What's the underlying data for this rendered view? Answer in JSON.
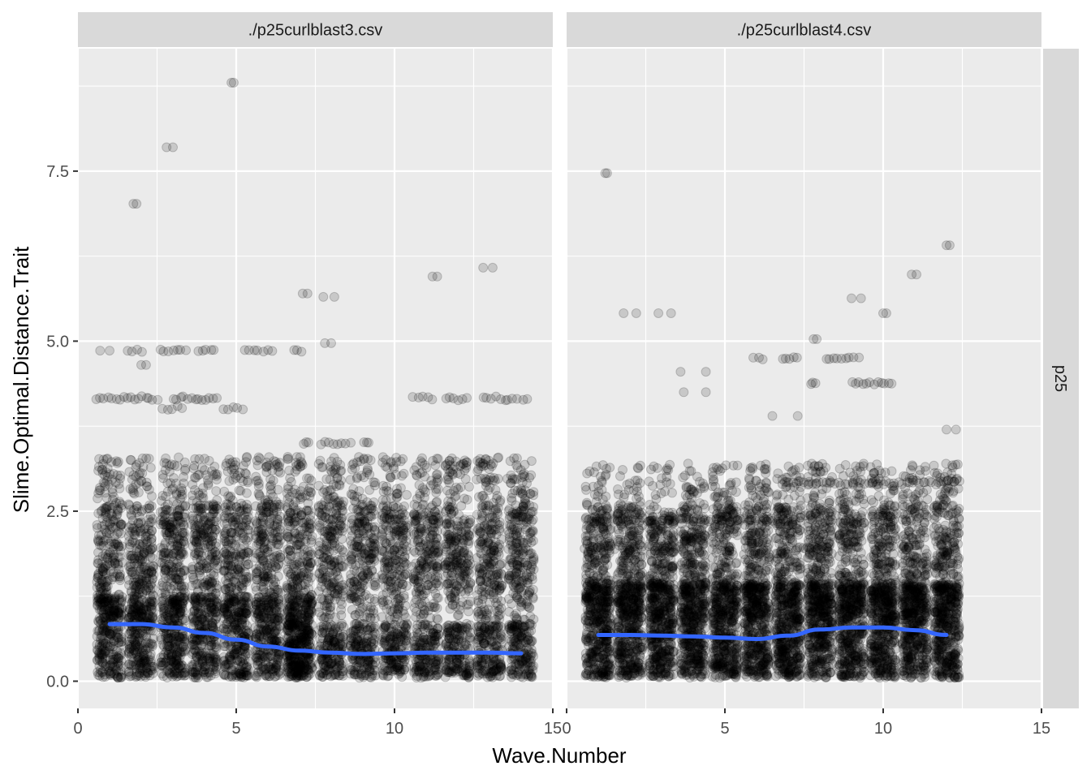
{
  "chart_data": {
    "type": "scatter",
    "xlabel": "Wave.Number",
    "ylabel": "Slime.Optimal.Distance.Trait",
    "xlim": [
      0,
      15
    ],
    "ylim": [
      -0.4,
      9.3
    ],
    "x_ticks": [
      "0",
      "5",
      "10",
      "15"
    ],
    "y_ticks": [
      "0.0",
      "2.5",
      "5.0",
      "7.5"
    ],
    "row_facet_label": "p25",
    "point_color": "#000000",
    "point_alpha": 0.15,
    "smooth_color": "#3366ff",
    "panel_background": "#ebebeb",
    "strip_background": "#d9d9d9",
    "grid": true,
    "panels": [
      {
        "label": "./p25curlblast3.csv",
        "x_range": [
          0.6,
          14.4
        ],
        "smooth": {
          "x": [
            1,
            2,
            3,
            4,
            5,
            6,
            7,
            8,
            9,
            10,
            11,
            12,
            13,
            14
          ],
          "y": [
            0.84,
            0.84,
            0.79,
            0.71,
            0.61,
            0.51,
            0.45,
            0.42,
            0.4,
            0.41,
            0.42,
            0.42,
            0.42,
            0.41
          ]
        },
        "outliers": [
          {
            "x": 4.85,
            "y": 8.8
          },
          {
            "x": 4.92,
            "y": 8.8
          },
          {
            "x": 2.8,
            "y": 7.85
          },
          {
            "x": 3.0,
            "y": 7.85
          },
          {
            "x": 1.75,
            "y": 7.02
          },
          {
            "x": 1.85,
            "y": 7.02
          },
          {
            "x": 12.8,
            "y": 6.08
          },
          {
            "x": 13.1,
            "y": 6.08
          },
          {
            "x": 11.2,
            "y": 5.95
          },
          {
            "x": 11.35,
            "y": 5.95
          },
          {
            "x": 7.1,
            "y": 5.7
          },
          {
            "x": 7.25,
            "y": 5.7
          },
          {
            "x": 7.75,
            "y": 5.65
          },
          {
            "x": 8.1,
            "y": 5.65
          },
          {
            "x": 7.8,
            "y": 4.97
          },
          {
            "x": 8.0,
            "y": 4.97
          },
          {
            "x": 2.0,
            "y": 4.65
          },
          {
            "x": 2.15,
            "y": 4.65
          },
          {
            "x": 0.7,
            "y": 4.86
          },
          {
            "x": 1.0,
            "y": 4.86
          }
        ],
        "bands": [
          {
            "y": 4.86,
            "spread": 0.02,
            "segments": [
              [
                1.6,
                2.0
              ],
              [
                2.6,
                3.4
              ],
              [
                3.8,
                4.3
              ],
              [
                5.3,
                6.1
              ],
              [
                6.8,
                7.1
              ]
            ]
          },
          {
            "y": 4.16,
            "spread": 0.03,
            "segments": [
              [
                0.6,
                2.5
              ],
              [
                3.0,
                4.4
              ],
              [
                10.6,
                11.2
              ],
              [
                11.6,
                12.3
              ],
              [
                12.8,
                13.5
              ],
              [
                13.6,
                14.2
              ]
            ]
          },
          {
            "y": 4.02,
            "spread": 0.03,
            "segments": [
              [
                2.7,
                3.3
              ],
              [
                4.6,
                5.2
              ]
            ]
          },
          {
            "y": 3.5,
            "spread": 0.02,
            "segments": [
              [
                7.1,
                7.3
              ],
              [
                7.7,
                8.6
              ],
              [
                9.0,
                9.2
              ]
            ]
          },
          {
            "y": 2.99,
            "spread": 0.03,
            "segments": [
              [
                12.6,
                13.3
              ],
              [
                13.6,
                14.0
              ]
            ]
          },
          {
            "y": 1.85,
            "spread": 0.03,
            "segments": [
              [
                2.6,
                3.3
              ],
              [
                4.7,
                5.0
              ]
            ]
          },
          {
            "y": 1.7,
            "spread": 0.03,
            "segments": [
              [
                10.6,
                11.2
              ],
              [
                11.6,
                12.4
              ],
              [
                13.6,
                14.3
              ]
            ]
          }
        ],
        "clusters": [
          {
            "count": 110,
            "y_min": 1.3,
            "y_max": 3.3
          },
          {
            "count": 140,
            "y_min": 0.9,
            "y_max": 2.6
          },
          {
            "count": 260,
            "y_min": 0.05,
            "y_max": 1.25,
            "x_max": 7.0
          },
          {
            "count": 170,
            "y_min": 0.05,
            "y_max": 0.85,
            "x_min": 7.0
          }
        ]
      },
      {
        "label": "./p25curlblast4.csv",
        "x_range": [
          0.55,
          12.45
        ],
        "smooth": {
          "x": [
            1,
            2,
            3,
            4,
            5,
            6,
            7,
            8,
            9,
            10,
            11,
            12
          ],
          "y": [
            0.68,
            0.68,
            0.67,
            0.66,
            0.64,
            0.62,
            0.67,
            0.76,
            0.79,
            0.79,
            0.75,
            0.68
          ]
        },
        "outliers": [
          {
            "x": 1.22,
            "y": 7.47
          },
          {
            "x": 1.28,
            "y": 7.47
          },
          {
            "x": 12.0,
            "y": 6.41
          },
          {
            "x": 12.1,
            "y": 6.41
          },
          {
            "x": 10.9,
            "y": 5.98
          },
          {
            "x": 11.05,
            "y": 5.98
          },
          {
            "x": 9.0,
            "y": 5.63
          },
          {
            "x": 9.3,
            "y": 5.63
          },
          {
            "x": 10.0,
            "y": 5.41
          },
          {
            "x": 10.1,
            "y": 5.41
          },
          {
            "x": 1.8,
            "y": 5.41
          },
          {
            "x": 2.2,
            "y": 5.41
          },
          {
            "x": 2.9,
            "y": 5.41
          },
          {
            "x": 3.3,
            "y": 5.41
          },
          {
            "x": 7.8,
            "y": 5.03
          },
          {
            "x": 7.9,
            "y": 5.03
          },
          {
            "x": 3.6,
            "y": 4.55
          },
          {
            "x": 4.4,
            "y": 4.55
          },
          {
            "x": 3.7,
            "y": 4.25
          },
          {
            "x": 4.4,
            "y": 4.25
          },
          {
            "x": 6.5,
            "y": 3.9
          },
          {
            "x": 7.3,
            "y": 3.9
          },
          {
            "x": 12.0,
            "y": 3.7
          },
          {
            "x": 12.3,
            "y": 3.7
          }
        ],
        "bands": [
          {
            "y": 4.75,
            "spread": 0.02,
            "segments": [
              [
                5.9,
                6.2
              ],
              [
                6.8,
                7.3
              ],
              [
                8.2,
                9.2
              ]
            ]
          },
          {
            "y": 4.38,
            "spread": 0.02,
            "segments": [
              [
                7.7,
                7.9
              ],
              [
                9.0,
                10.3
              ]
            ]
          },
          {
            "y": 2.92,
            "spread": 0.03,
            "segments": [
              [
                6.8,
                8.6
              ],
              [
                8.8,
                10.6
              ],
              [
                10.8,
                12.4
              ]
            ]
          },
          {
            "y": 2.45,
            "spread": 0.03,
            "segments": [
              [
                7.5,
                8.5
              ],
              [
                9.7,
                10.4
              ]
            ]
          },
          {
            "y": 2.37,
            "spread": 0.03,
            "segments": [
              [
                0.6,
                5.5
              ],
              [
                5.5,
                7.0
              ]
            ]
          },
          {
            "y": 1.97,
            "spread": 0.03,
            "segments": [
              [
                0.6,
                2.0
              ],
              [
                2.6,
                3.7
              ],
              [
                7.0,
                8.2
              ]
            ]
          }
        ],
        "clusters": [
          {
            "count": 90,
            "y_min": 1.3,
            "y_max": 3.2
          },
          {
            "count": 150,
            "y_min": 0.9,
            "y_max": 2.6
          },
          {
            "count": 380,
            "y_min": 0.05,
            "y_max": 1.45
          }
        ]
      }
    ]
  }
}
